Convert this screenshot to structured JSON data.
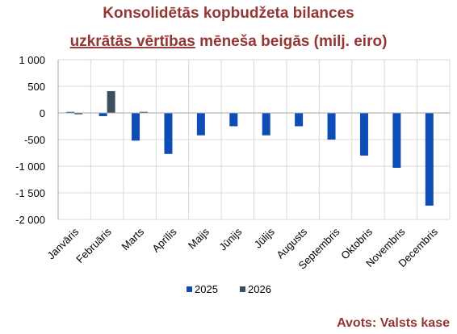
{
  "title": {
    "line1": "Konsolidētās kopbudžeta bilances",
    "line2_underlined": "uzkrātās vērtības",
    "line2_rest": " mēneša beigās (milj. eiro)"
  },
  "source": "Avots: Valsts kase",
  "colors": {
    "title": "#943634",
    "series_2025": "#0E4DB5",
    "series_2026": "#3D4E5E",
    "grid": "#D9D9D9"
  },
  "chart_data": {
    "type": "bar",
    "title": "Konsolidētās kopbudžeta bilances uzkrātās vērtības mēneša beigās (milj. eiro)",
    "categories": [
      "Janvāris",
      "Februāris",
      "Marts",
      "Aprīlis",
      "Maijs",
      "Jūnijs",
      "Jūlijs",
      "Augusts",
      "Septembris",
      "Oktobris",
      "Novembris",
      "Decembris"
    ],
    "series": [
      {
        "name": "2025",
        "color": "#0E4DB5",
        "values": [
          20,
          -60,
          -520,
          -770,
          -420,
          -250,
          -420,
          -250,
          -500,
          -800,
          -1030,
          -1740
        ]
      },
      {
        "name": "2026",
        "color": "#3D4E5E",
        "values": [
          -25,
          410,
          20,
          null,
          null,
          null,
          null,
          null,
          null,
          null,
          null,
          null
        ]
      }
    ],
    "ylim": [
      -2000,
      1000
    ],
    "yticks": [
      1000,
      500,
      0,
      -500,
      -1000,
      -1500,
      -2000
    ],
    "ytick_labels": [
      "1 000",
      "500",
      "0",
      "-500",
      "-1 000",
      "-1 500",
      "-2 000"
    ],
    "grid": true,
    "legend": "bottom"
  }
}
